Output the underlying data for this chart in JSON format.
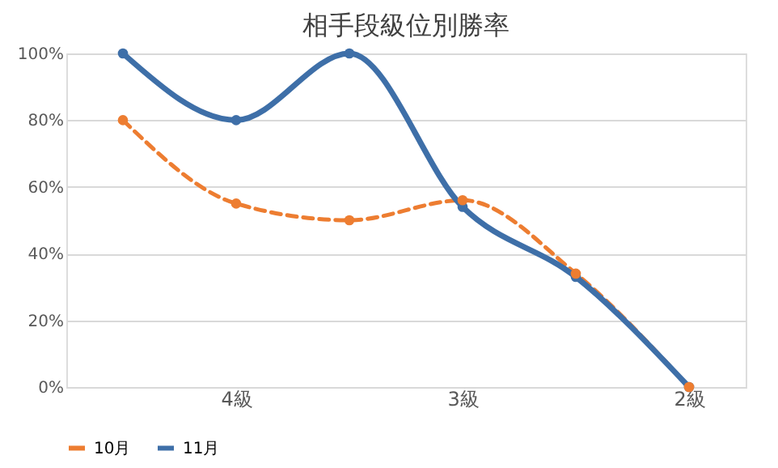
{
  "chart_data": {
    "type": "line",
    "title": "相手段級位別勝率",
    "categories": [
      null,
      "4級",
      null,
      "3級",
      null,
      "2級"
    ],
    "series": [
      {
        "name": "10月",
        "color": "#ed7d31",
        "line_style": "dashed",
        "values": [
          80,
          55,
          50,
          56,
          34,
          0
        ]
      },
      {
        "name": "11月",
        "color": "#3e6fa8",
        "line_style": "solid",
        "values": [
          100,
          80,
          100,
          54,
          33,
          0
        ]
      }
    ],
    "ylim": [
      0,
      100
    ],
    "yticks": [
      {
        "value": 0,
        "label": "0%"
      },
      {
        "value": 20,
        "label": "20%"
      },
      {
        "value": 40,
        "label": "40%"
      },
      {
        "value": 60,
        "label": "60%"
      },
      {
        "value": 80,
        "label": "80%"
      },
      {
        "value": 100,
        "label": "100%"
      }
    ],
    "grid": "y",
    "legend": "bottom",
    "marker": "circle"
  }
}
